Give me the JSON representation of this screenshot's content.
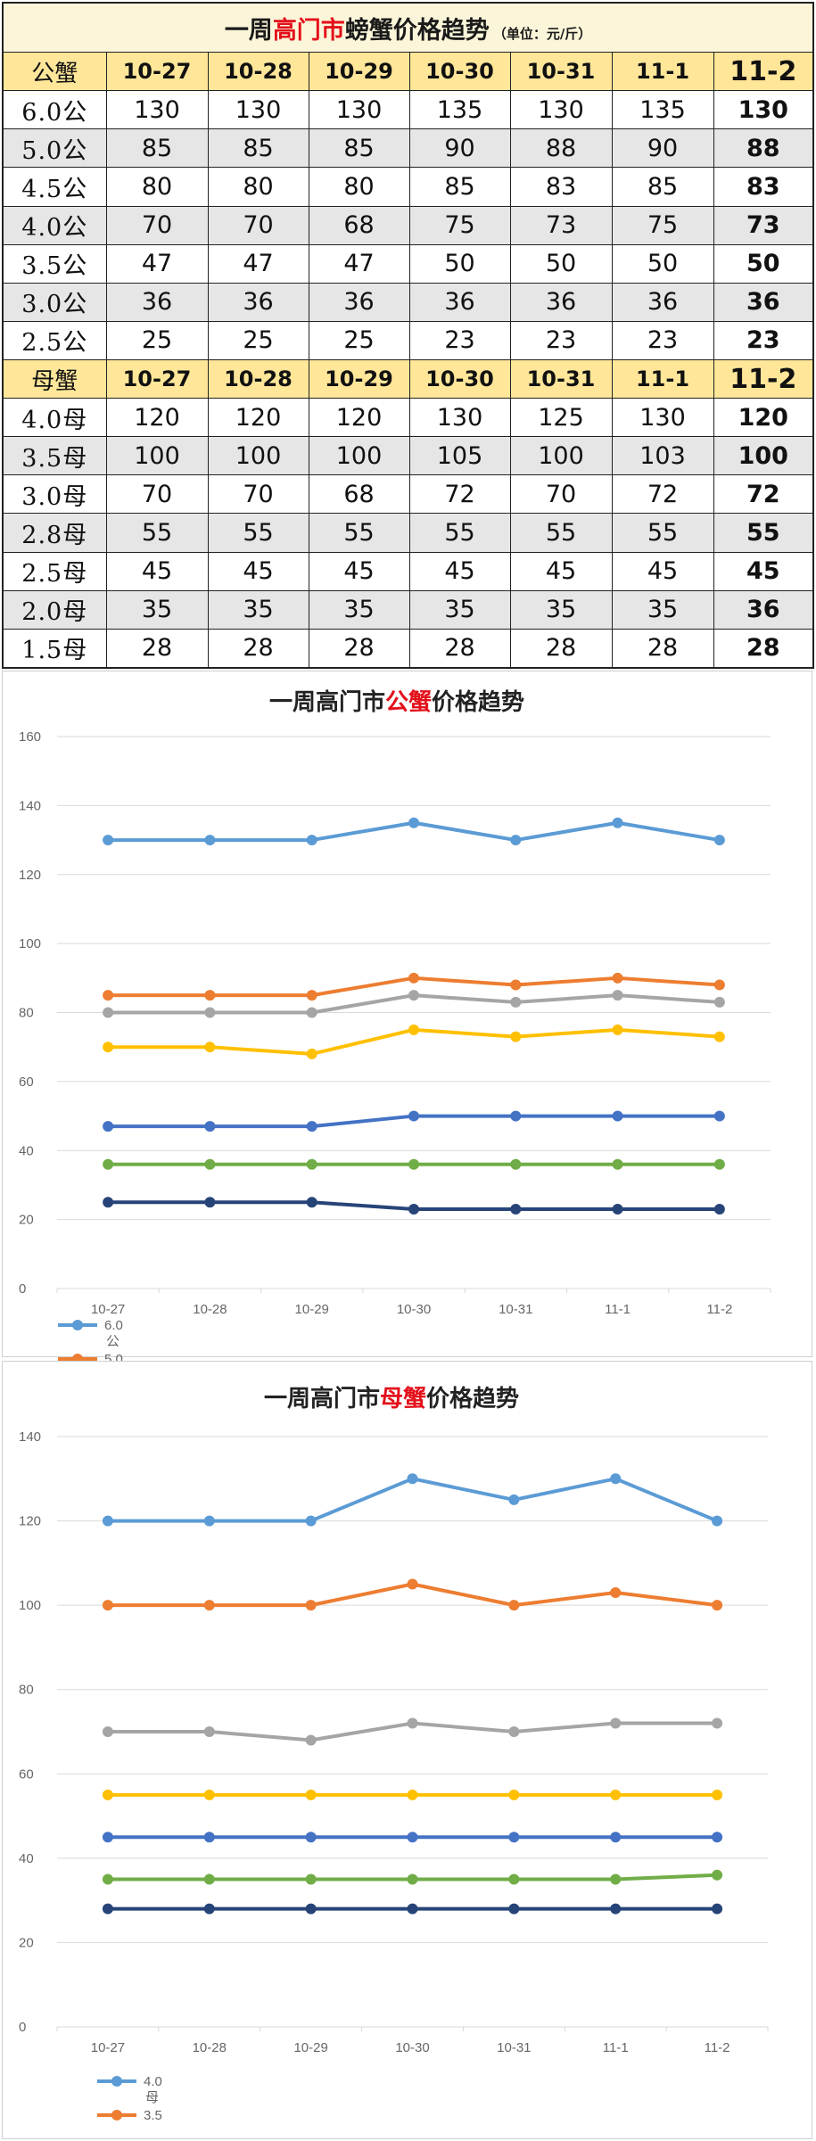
{
  "table": {
    "title": {
      "prefix": "一周",
      "highlight": "高门市",
      "suffix": "螃蟹价格趋势",
      "unit": "（单位：元/斤）"
    },
    "dates": [
      "10-27",
      "10-28",
      "10-29",
      "10-30",
      "10-31",
      "11-1",
      "11-2"
    ],
    "male": {
      "header": "公蟹",
      "rows": [
        {
          "label": "6.0公",
          "values": [
            130,
            130,
            130,
            135,
            130,
            135,
            130
          ]
        },
        {
          "label": "5.0公",
          "values": [
            85,
            85,
            85,
            90,
            88,
            90,
            88
          ]
        },
        {
          "label": "4.5公",
          "values": [
            80,
            80,
            80,
            85,
            83,
            85,
            83
          ]
        },
        {
          "label": "4.0公",
          "values": [
            70,
            70,
            68,
            75,
            73,
            75,
            73
          ]
        },
        {
          "label": "3.5公",
          "values": [
            47,
            47,
            47,
            50,
            50,
            50,
            50
          ]
        },
        {
          "label": "3.0公",
          "values": [
            36,
            36,
            36,
            36,
            36,
            36,
            36
          ]
        },
        {
          "label": "2.5公",
          "values": [
            25,
            25,
            25,
            23,
            23,
            23,
            23
          ]
        }
      ]
    },
    "female": {
      "header": "母蟹",
      "rows": [
        {
          "label": "4.0母",
          "values": [
            120,
            120,
            120,
            130,
            125,
            130,
            120
          ]
        },
        {
          "label": "3.5母",
          "values": [
            100,
            100,
            100,
            105,
            100,
            103,
            100
          ]
        },
        {
          "label": "3.0母",
          "values": [
            70,
            70,
            68,
            72,
            70,
            72,
            72
          ]
        },
        {
          "label": "2.8母",
          "values": [
            55,
            55,
            55,
            55,
            55,
            55,
            55
          ]
        },
        {
          "label": "2.5母",
          "values": [
            45,
            45,
            45,
            45,
            45,
            45,
            45
          ]
        },
        {
          "label": "2.0母",
          "values": [
            35,
            35,
            35,
            35,
            35,
            35,
            36
          ]
        },
        {
          "label": "1.5母",
          "values": [
            28,
            28,
            28,
            28,
            28,
            28,
            28
          ]
        }
      ]
    }
  },
  "colors": [
    "#5b9bd5",
    "#ed7d31",
    "#a5a5a5",
    "#ffc000",
    "#4472c4",
    "#70ad47",
    "#264478"
  ],
  "chart_data": [
    {
      "type": "line",
      "title": {
        "prefix": "一周高门市",
        "highlight": "公蟹",
        "suffix": "价格趋势"
      },
      "categories": [
        "10-27",
        "10-28",
        "10-29",
        "10-30",
        "10-31",
        "11-1",
        "11-2"
      ],
      "ylim": [
        0,
        160
      ],
      "yticks": [
        0,
        20,
        40,
        60,
        80,
        100,
        120,
        140,
        160
      ],
      "grid": true,
      "legend_position": "bottom-left",
      "legend_visible": [
        {
          "label": "6.0",
          "sub": "公"
        },
        {
          "label": "5.0",
          "sub": ""
        }
      ],
      "series": [
        {
          "values": [
            130,
            130,
            130,
            135,
            130,
            135,
            130
          ]
        },
        {
          "values": [
            85,
            85,
            85,
            90,
            88,
            90,
            88
          ]
        },
        {
          "values": [
            80,
            80,
            80,
            85,
            83,
            85,
            83
          ]
        },
        {
          "values": [
            70,
            70,
            68,
            75,
            73,
            75,
            73
          ]
        },
        {
          "values": [
            47,
            47,
            47,
            50,
            50,
            50,
            50
          ]
        },
        {
          "values": [
            36,
            36,
            36,
            36,
            36,
            36,
            36
          ]
        },
        {
          "values": [
            25,
            25,
            25,
            23,
            23,
            23,
            23
          ]
        }
      ]
    },
    {
      "type": "line",
      "title": {
        "prefix": "一周高门市",
        "highlight": "母蟹",
        "suffix": "价格趋势"
      },
      "categories": [
        "10-27",
        "10-28",
        "10-29",
        "10-30",
        "10-31",
        "11-1",
        "11-2"
      ],
      "ylim": [
        0,
        140
      ],
      "yticks": [
        0,
        20,
        40,
        60,
        80,
        100,
        120,
        140
      ],
      "grid": true,
      "legend_position": "bottom-left",
      "legend_visible": [
        {
          "label": "4.0",
          "sub": "母"
        },
        {
          "label": "3.5",
          "sub": ""
        }
      ],
      "series": [
        {
          "values": [
            120,
            120,
            120,
            130,
            125,
            130,
            120
          ]
        },
        {
          "values": [
            100,
            100,
            100,
            105,
            100,
            103,
            100
          ]
        },
        {
          "values": [
            70,
            70,
            68,
            72,
            70,
            72,
            72
          ]
        },
        {
          "values": [
            55,
            55,
            55,
            55,
            55,
            55,
            55
          ]
        },
        {
          "values": [
            45,
            45,
            45,
            45,
            45,
            45,
            45
          ]
        },
        {
          "values": [
            35,
            35,
            35,
            35,
            35,
            35,
            36
          ]
        },
        {
          "values": [
            28,
            28,
            28,
            28,
            28,
            28,
            28
          ]
        }
      ]
    }
  ]
}
